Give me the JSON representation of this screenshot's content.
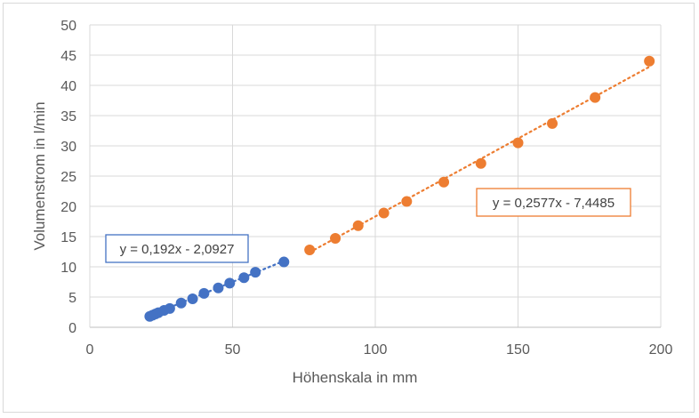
{
  "chart_data": {
    "type": "scatter",
    "title": "",
    "xlabel": "Höhenskala in mm",
    "ylabel": "Volumenstrom in l/min",
    "xlim": [
      0,
      200
    ],
    "ylim": [
      0,
      50
    ],
    "x_ticks": [
      0,
      50,
      100,
      150,
      200
    ],
    "y_ticks": [
      0,
      5,
      10,
      15,
      20,
      25,
      30,
      35,
      40,
      45,
      50
    ],
    "grid": true,
    "legend": "none",
    "series": [
      {
        "color": "#4472c4",
        "trendline": {
          "slope": 0.192,
          "intercept": -2.0927,
          "label": "y = 0,192x - 2,0927",
          "style": "dotted",
          "x_range": [
            21,
            68
          ]
        },
        "points": [
          {
            "x": 21,
            "y": 1.8
          },
          {
            "x": 22,
            "y": 2.0
          },
          {
            "x": 23,
            "y": 2.2
          },
          {
            "x": 24,
            "y": 2.4
          },
          {
            "x": 26,
            "y": 2.8
          },
          {
            "x": 28,
            "y": 3.1
          },
          {
            "x": 32,
            "y": 4.0
          },
          {
            "x": 36,
            "y": 4.7
          },
          {
            "x": 40,
            "y": 5.6
          },
          {
            "x": 45,
            "y": 6.5
          },
          {
            "x": 49,
            "y": 7.3
          },
          {
            "x": 54,
            "y": 8.2
          },
          {
            "x": 58,
            "y": 9.1
          },
          {
            "x": 68,
            "y": 10.8
          }
        ]
      },
      {
        "color": "#ed7d31",
        "trendline": {
          "slope": 0.2577,
          "intercept": -7.4485,
          "label": "y = 0,2577x - 7,4485",
          "style": "dotted",
          "x_range": [
            77,
            196
          ]
        },
        "points": [
          {
            "x": 77,
            "y": 12.8
          },
          {
            "x": 86,
            "y": 14.7
          },
          {
            "x": 94,
            "y": 16.8
          },
          {
            "x": 103,
            "y": 18.9
          },
          {
            "x": 111,
            "y": 20.8
          },
          {
            "x": 124,
            "y": 24.0
          },
          {
            "x": 137,
            "y": 27.1
          },
          {
            "x": 150,
            "y": 30.5
          },
          {
            "x": 162,
            "y": 33.7
          },
          {
            "x": 177,
            "y": 38.0
          },
          {
            "x": 196,
            "y": 44.0
          }
        ]
      }
    ]
  }
}
